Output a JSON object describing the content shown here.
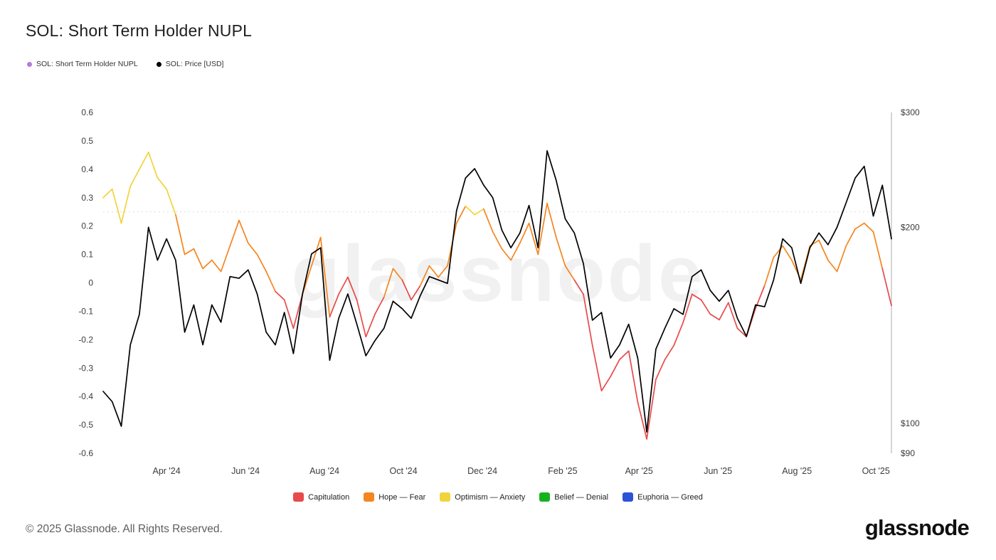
{
  "title": "SOL: Short Term Holder NUPL",
  "watermark": "glassnode",
  "top_legend": [
    {
      "label": "SOL: Short Term Holder NUPL",
      "color": "#b57bd6"
    },
    {
      "label": "SOL: Price [USD]",
      "color": "#000000"
    }
  ],
  "bottom_legend": [
    {
      "label": "Capitulation",
      "color": "#e84a4a"
    },
    {
      "label": "Hope — Fear",
      "color": "#f5851f"
    },
    {
      "label": "Optimism — Anxiety",
      "color": "#f0d43c"
    },
    {
      "label": "Belief — Denial",
      "color": "#16b21e"
    },
    {
      "label": "Euphoria — Greed",
      "color": "#2b53d8"
    }
  ],
  "footer": {
    "copyright": "© 2025 Glassnode. All Rights Reserved.",
    "brand": "glassnode"
  },
  "chart_data": {
    "type": "line",
    "title": "SOL: Short Term Holder NUPL",
    "x": [
      "2024-02-12",
      "2024-02-19",
      "2024-02-26",
      "2024-03-04",
      "2024-03-11",
      "2024-03-18",
      "2024-03-25",
      "2024-04-01",
      "2024-04-08",
      "2024-04-15",
      "2024-04-22",
      "2024-04-29",
      "2024-05-06",
      "2024-05-13",
      "2024-05-20",
      "2024-05-27",
      "2024-06-03",
      "2024-06-10",
      "2024-06-17",
      "2024-06-24",
      "2024-07-01",
      "2024-07-08",
      "2024-07-15",
      "2024-07-22",
      "2024-07-29",
      "2024-08-05",
      "2024-08-12",
      "2024-08-19",
      "2024-08-26",
      "2024-09-02",
      "2024-09-09",
      "2024-09-16",
      "2024-09-23",
      "2024-09-30",
      "2024-10-07",
      "2024-10-14",
      "2024-10-21",
      "2024-10-28",
      "2024-11-04",
      "2024-11-11",
      "2024-11-18",
      "2024-11-25",
      "2024-12-02",
      "2024-12-09",
      "2024-12-16",
      "2024-12-23",
      "2024-12-30",
      "2025-01-06",
      "2025-01-13",
      "2025-01-20",
      "2025-01-27",
      "2025-02-03",
      "2025-02-10",
      "2025-02-17",
      "2025-02-24",
      "2025-03-03",
      "2025-03-10",
      "2025-03-17",
      "2025-03-24",
      "2025-03-31",
      "2025-04-07",
      "2025-04-14",
      "2025-04-21",
      "2025-04-28",
      "2025-05-05",
      "2025-05-12",
      "2025-05-19",
      "2025-05-26",
      "2025-06-02",
      "2025-06-09",
      "2025-06-16",
      "2025-06-23",
      "2025-06-30",
      "2025-07-07",
      "2025-07-14",
      "2025-07-21",
      "2025-07-28",
      "2025-08-04",
      "2025-08-11",
      "2025-08-18",
      "2025-08-25",
      "2025-09-01",
      "2025-09-08",
      "2025-09-15",
      "2025-09-22",
      "2025-09-29",
      "2025-10-06",
      "2025-10-13"
    ],
    "series": [
      {
        "name": "SOL: Short Term Holder NUPL",
        "axis": "left",
        "color_mode": "banded",
        "values": [
          0.3,
          0.33,
          0.21,
          0.34,
          0.4,
          0.46,
          0.37,
          0.33,
          0.24,
          0.1,
          0.12,
          0.05,
          0.08,
          0.04,
          0.13,
          0.22,
          0.14,
          0.1,
          0.04,
          -0.03,
          -0.06,
          -0.16,
          -0.04,
          0.06,
          0.16,
          -0.12,
          -0.04,
          0.02,
          -0.06,
          -0.19,
          -0.11,
          -0.05,
          0.05,
          0.01,
          -0.06,
          -0.01,
          0.06,
          0.02,
          0.06,
          0.21,
          0.27,
          0.24,
          0.26,
          0.18,
          0.12,
          0.08,
          0.14,
          0.21,
          0.1,
          0.28,
          0.16,
          0.06,
          0.01,
          -0.04,
          -0.22,
          -0.38,
          -0.33,
          -0.27,
          -0.24,
          -0.42,
          -0.55,
          -0.34,
          -0.27,
          -0.22,
          -0.14,
          -0.04,
          -0.06,
          -0.11,
          -0.13,
          -0.07,
          -0.16,
          -0.19,
          -0.09,
          -0.01,
          0.09,
          0.13,
          0.08,
          0.01,
          0.13,
          0.15,
          0.08,
          0.04,
          0.13,
          0.19,
          0.21,
          0.18,
          0.05,
          -0.08
        ]
      },
      {
        "name": "SOL: Price [USD]",
        "axis": "right",
        "color": "#000000",
        "values": [
          112,
          108,
          99,
          132,
          147,
          200,
          178,
          192,
          178,
          138,
          152,
          132,
          152,
          143,
          168,
          167,
          172,
          158,
          138,
          132,
          148,
          128,
          158,
          182,
          186,
          125,
          145,
          158,
          142,
          127,
          134,
          140,
          154,
          150,
          145,
          157,
          168,
          166,
          164,
          212,
          238,
          246,
          232,
          222,
          198,
          186,
          196,
          216,
          186,
          262,
          236,
          206,
          196,
          176,
          144,
          148,
          126,
          132,
          142,
          126,
          97,
          130,
          140,
          150,
          147,
          168,
          172,
          160,
          154,
          160,
          145,
          136,
          152,
          151,
          166,
          192,
          186,
          164,
          186,
          196,
          188,
          200,
          218,
          238,
          248,
          208,
          232,
          192
        ]
      }
    ],
    "left_axis": {
      "min": -0.6,
      "max": 0.6,
      "ticks": [
        0.6,
        0.5,
        0.4,
        0.3,
        0.2,
        0.1,
        0,
        -0.1,
        -0.2,
        -0.3,
        -0.4,
        -0.5,
        -0.6
      ],
      "gridline_at": 0.25
    },
    "right_axis": {
      "scale": "log",
      "min": 90,
      "max": 300,
      "ticks": [
        300,
        200,
        100,
        90
      ],
      "tick_prefix": "$"
    },
    "x_ticks": [
      {
        "date": "2024-04-01",
        "label": "Apr '24"
      },
      {
        "date": "2024-06-01",
        "label": "Jun '24"
      },
      {
        "date": "2024-08-01",
        "label": "Aug '24"
      },
      {
        "date": "2024-10-01",
        "label": "Oct '24"
      },
      {
        "date": "2024-12-01",
        "label": "Dec '24"
      },
      {
        "date": "2025-02-01",
        "label": "Feb '25"
      },
      {
        "date": "2025-04-01",
        "label": "Apr '25"
      },
      {
        "date": "2025-06-01",
        "label": "Jun '25"
      },
      {
        "date": "2025-08-01",
        "label": "Aug '25"
      },
      {
        "date": "2025-10-01",
        "label": "Oct '25"
      }
    ],
    "bands": [
      {
        "name": "Capitulation",
        "max": 0,
        "color": "#e84a4a"
      },
      {
        "name": "Hope — Fear",
        "max": 0.25,
        "color": "#f5851f"
      },
      {
        "name": "Optimism — Anxiety",
        "max": 0.5,
        "color": "#f0d43c"
      },
      {
        "name": "Belief — Denial",
        "max": 0.75,
        "color": "#16b21e"
      },
      {
        "name": "Euphoria — Greed",
        "max": 9.99,
        "color": "#2b53d8"
      }
    ],
    "legend_position": "bottom",
    "grid": "minimal"
  }
}
